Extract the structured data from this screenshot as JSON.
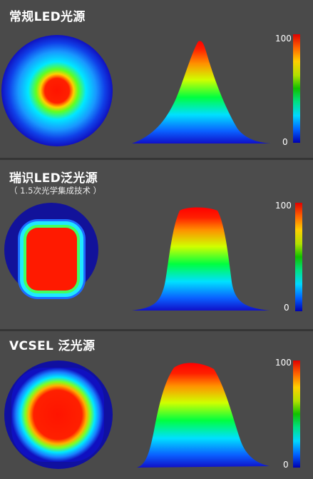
{
  "panels": [
    {
      "title": "常规LED光源",
      "subtitle": "",
      "scale_max": "100",
      "scale_min": "0"
    },
    {
      "title": "瑞识LED泛光源",
      "subtitle": "（ 1.5次光学集成技术 ）",
      "scale_max": "100",
      "scale_min": "0"
    },
    {
      "title": "VCSEL 泛光源",
      "subtitle": "",
      "scale_max": "100",
      "scale_min": "0"
    }
  ],
  "colors": {
    "background": "#4a4a4a",
    "map_red": "#ff1a00",
    "map_blue": "#1010c8"
  }
}
